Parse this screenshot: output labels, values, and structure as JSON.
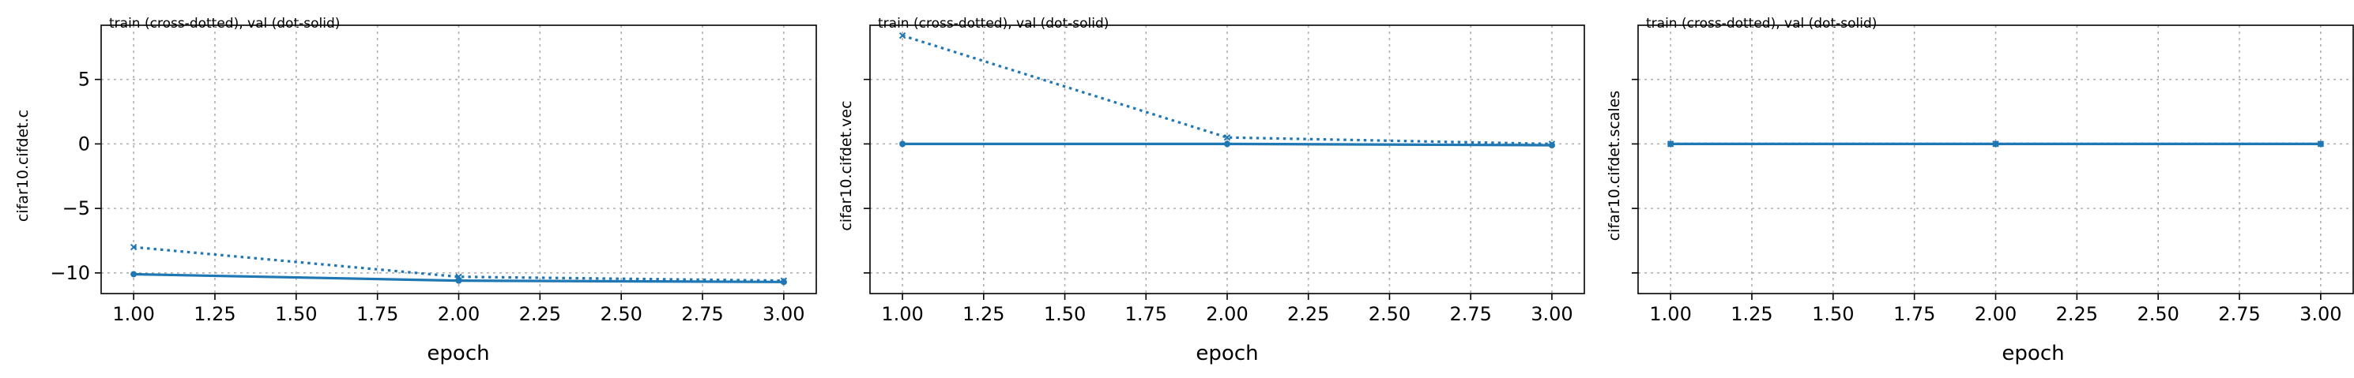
{
  "chart_data": [
    {
      "type": "line",
      "title": "train (cross-dotted), val (dot-solid)",
      "xlabel": "epoch",
      "ylabel": "cifar10.cifdet.c",
      "xlim": [
        0.9,
        3.1
      ],
      "ylim": [
        -11.6,
        9.2
      ],
      "xticks": [
        "1.00",
        "1.25",
        "1.50",
        "1.75",
        "2.00",
        "2.25",
        "2.50",
        "2.75",
        "3.00"
      ],
      "yticks": [
        "5",
        "0",
        "−5",
        "−10"
      ],
      "ytick_values": [
        5,
        0,
        -5,
        -10
      ],
      "show_yticklabels": true,
      "grid": true,
      "series": [
        {
          "name": "train",
          "style": "dotted",
          "marker": "x",
          "color": "#1f77b4",
          "x": [
            1,
            2,
            3
          ],
          "y": [
            -8.0,
            -10.3,
            -10.6
          ]
        },
        {
          "name": "val",
          "style": "solid",
          "marker": "o",
          "color": "#1f77b4",
          "x": [
            1,
            2,
            3
          ],
          "y": [
            -10.1,
            -10.6,
            -10.7
          ]
        }
      ]
    },
    {
      "type": "line",
      "title": "train (cross-dotted), val (dot-solid)",
      "xlabel": "epoch",
      "ylabel": "cifar10.cifdet.vec",
      "xlim": [
        0.9,
        3.1
      ],
      "ylim": [
        -11.6,
        9.2
      ],
      "xticks": [
        "1.00",
        "1.25",
        "1.50",
        "1.75",
        "2.00",
        "2.25",
        "2.50",
        "2.75",
        "3.00"
      ],
      "yticks": [],
      "ytick_values": [
        5,
        0,
        -5,
        -10
      ],
      "show_yticklabels": false,
      "grid": true,
      "series": [
        {
          "name": "train",
          "style": "dotted",
          "marker": "x",
          "color": "#1f77b4",
          "x": [
            1,
            2,
            3
          ],
          "y": [
            8.4,
            0.5,
            0.0
          ]
        },
        {
          "name": "val",
          "style": "solid",
          "marker": "o",
          "color": "#1f77b4",
          "x": [
            1,
            2,
            3
          ],
          "y": [
            0.0,
            0.0,
            -0.1
          ]
        }
      ]
    },
    {
      "type": "line",
      "title": "train (cross-dotted), val (dot-solid)",
      "xlabel": "epoch",
      "ylabel": "cifar10.cifdet.scales",
      "xlim": [
        0.9,
        3.1
      ],
      "ylim": [
        -11.6,
        9.2
      ],
      "xticks": [
        "1.00",
        "1.25",
        "1.50",
        "1.75",
        "2.00",
        "2.25",
        "2.50",
        "2.75",
        "3.00"
      ],
      "yticks": [],
      "ytick_values": [
        5,
        0,
        -5,
        -10
      ],
      "show_yticklabels": false,
      "grid": true,
      "series": [
        {
          "name": "train",
          "style": "dotted",
          "marker": "x",
          "color": "#1f77b4",
          "x": [
            1,
            2,
            3
          ],
          "y": [
            0.0,
            0.0,
            0.0
          ]
        },
        {
          "name": "val",
          "style": "solid",
          "marker": "o",
          "color": "#1f77b4",
          "x": [
            1,
            2,
            3
          ],
          "y": [
            0.0,
            0.0,
            0.0
          ]
        }
      ]
    }
  ]
}
